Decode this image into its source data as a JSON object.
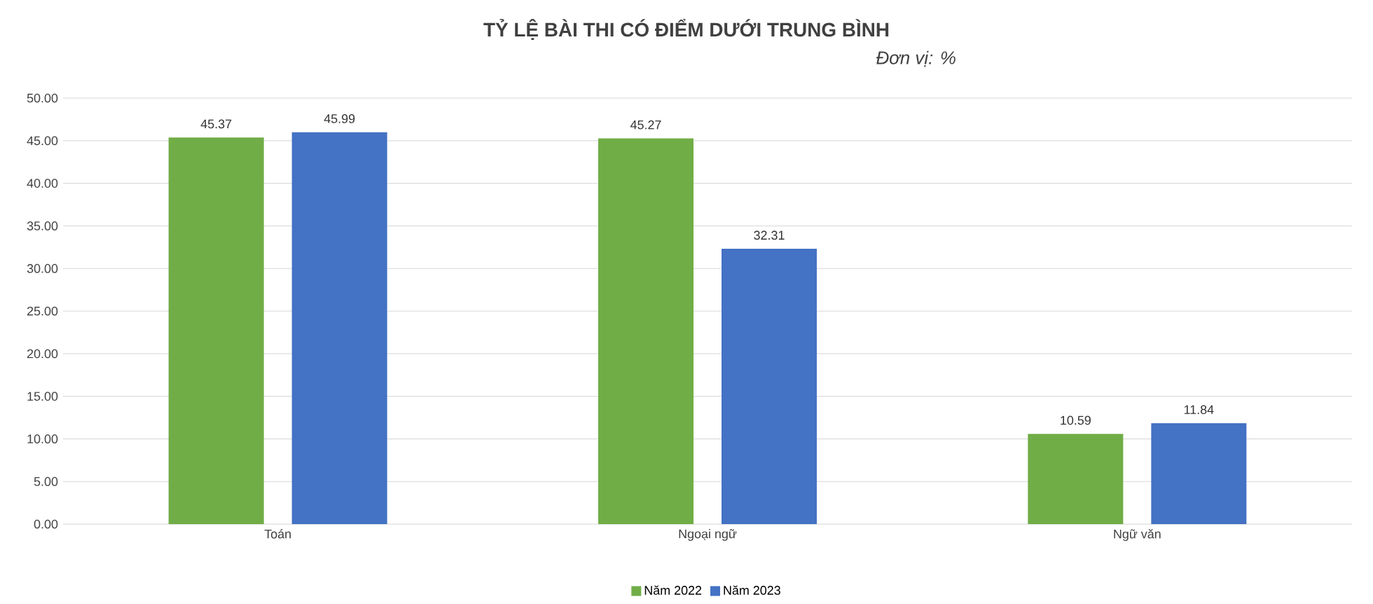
{
  "chart_data": {
    "type": "bar",
    "title": "TỶ LỆ BÀI THI CÓ ĐIỂM DƯỚI TRUNG BÌNH",
    "subtitle": "Đơn vị: %",
    "categories": [
      "Toán",
      "Ngoại ngữ",
      "Ngữ văn"
    ],
    "series": [
      {
        "name": "Năm 2022",
        "color": "#70ad47",
        "values": [
          45.37,
          45.27,
          10.59
        ]
      },
      {
        "name": "Năm 2023",
        "color": "#4472c4",
        "values": [
          45.99,
          32.31,
          11.84
        ]
      }
    ],
    "ylim": [
      0,
      50
    ],
    "yticks": [
      {
        "value": 0,
        "label": "0.00"
      },
      {
        "value": 5,
        "label": "5.00"
      },
      {
        "value": 10,
        "label": "10.00"
      },
      {
        "value": 15,
        "label": "15.00"
      },
      {
        "value": 20,
        "label": "20.00"
      },
      {
        "value": 25,
        "label": "25.00"
      },
      {
        "value": 30,
        "label": "30.00"
      },
      {
        "value": 35,
        "label": "35.00"
      },
      {
        "value": 40,
        "label": "40.00"
      },
      {
        "value": 45,
        "label": "45.00"
      },
      {
        "value": 50,
        "label": "50.00"
      }
    ],
    "grid": "y",
    "legend": "bottom",
    "data_labels": true
  }
}
